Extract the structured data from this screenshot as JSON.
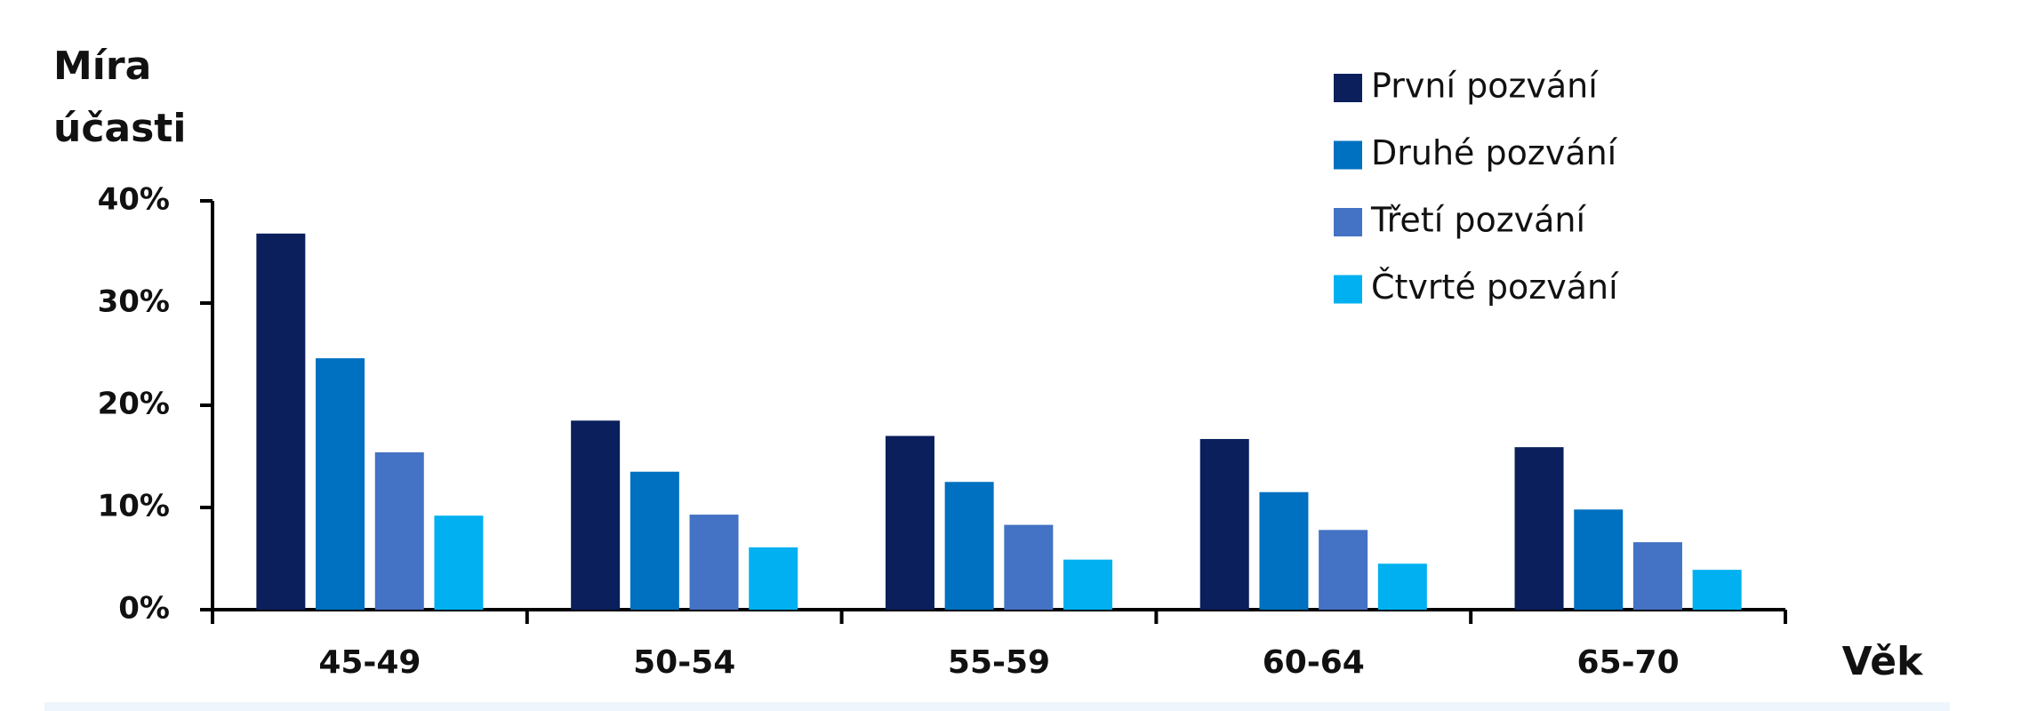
{
  "chart_data": {
    "type": "bar",
    "ylabel": "Míra účasti",
    "xlabel": "Věk",
    "categories": [
      "45-49",
      "50-54",
      "55-59",
      "60-64",
      "65-70"
    ],
    "series": [
      {
        "name": "První pozvání",
        "color": "#0a1f5c",
        "values": [
          36.8,
          18.5,
          17.0,
          16.7,
          15.9
        ]
      },
      {
        "name": "Druhé pozvání",
        "color": "#0070c0",
        "values": [
          24.6,
          13.5,
          12.5,
          11.5,
          9.8
        ]
      },
      {
        "name": "Třetí pozvání",
        "color": "#4472c4",
        "values": [
          15.4,
          9.3,
          8.3,
          7.8,
          6.6
        ]
      },
      {
        "name": "Čtvrté pozvání",
        "color": "#00b0f0",
        "values": [
          9.2,
          6.1,
          4.9,
          4.5,
          3.9
        ]
      }
    ],
    "ylim": [
      0,
      40
    ],
    "yticks": [
      {
        "value": 0,
        "label": "0%"
      },
      {
        "value": 10,
        "label": "10%"
      },
      {
        "value": 20,
        "label": "20%"
      },
      {
        "value": 30,
        "label": "30%"
      },
      {
        "value": 40,
        "label": "40%"
      }
    ]
  }
}
